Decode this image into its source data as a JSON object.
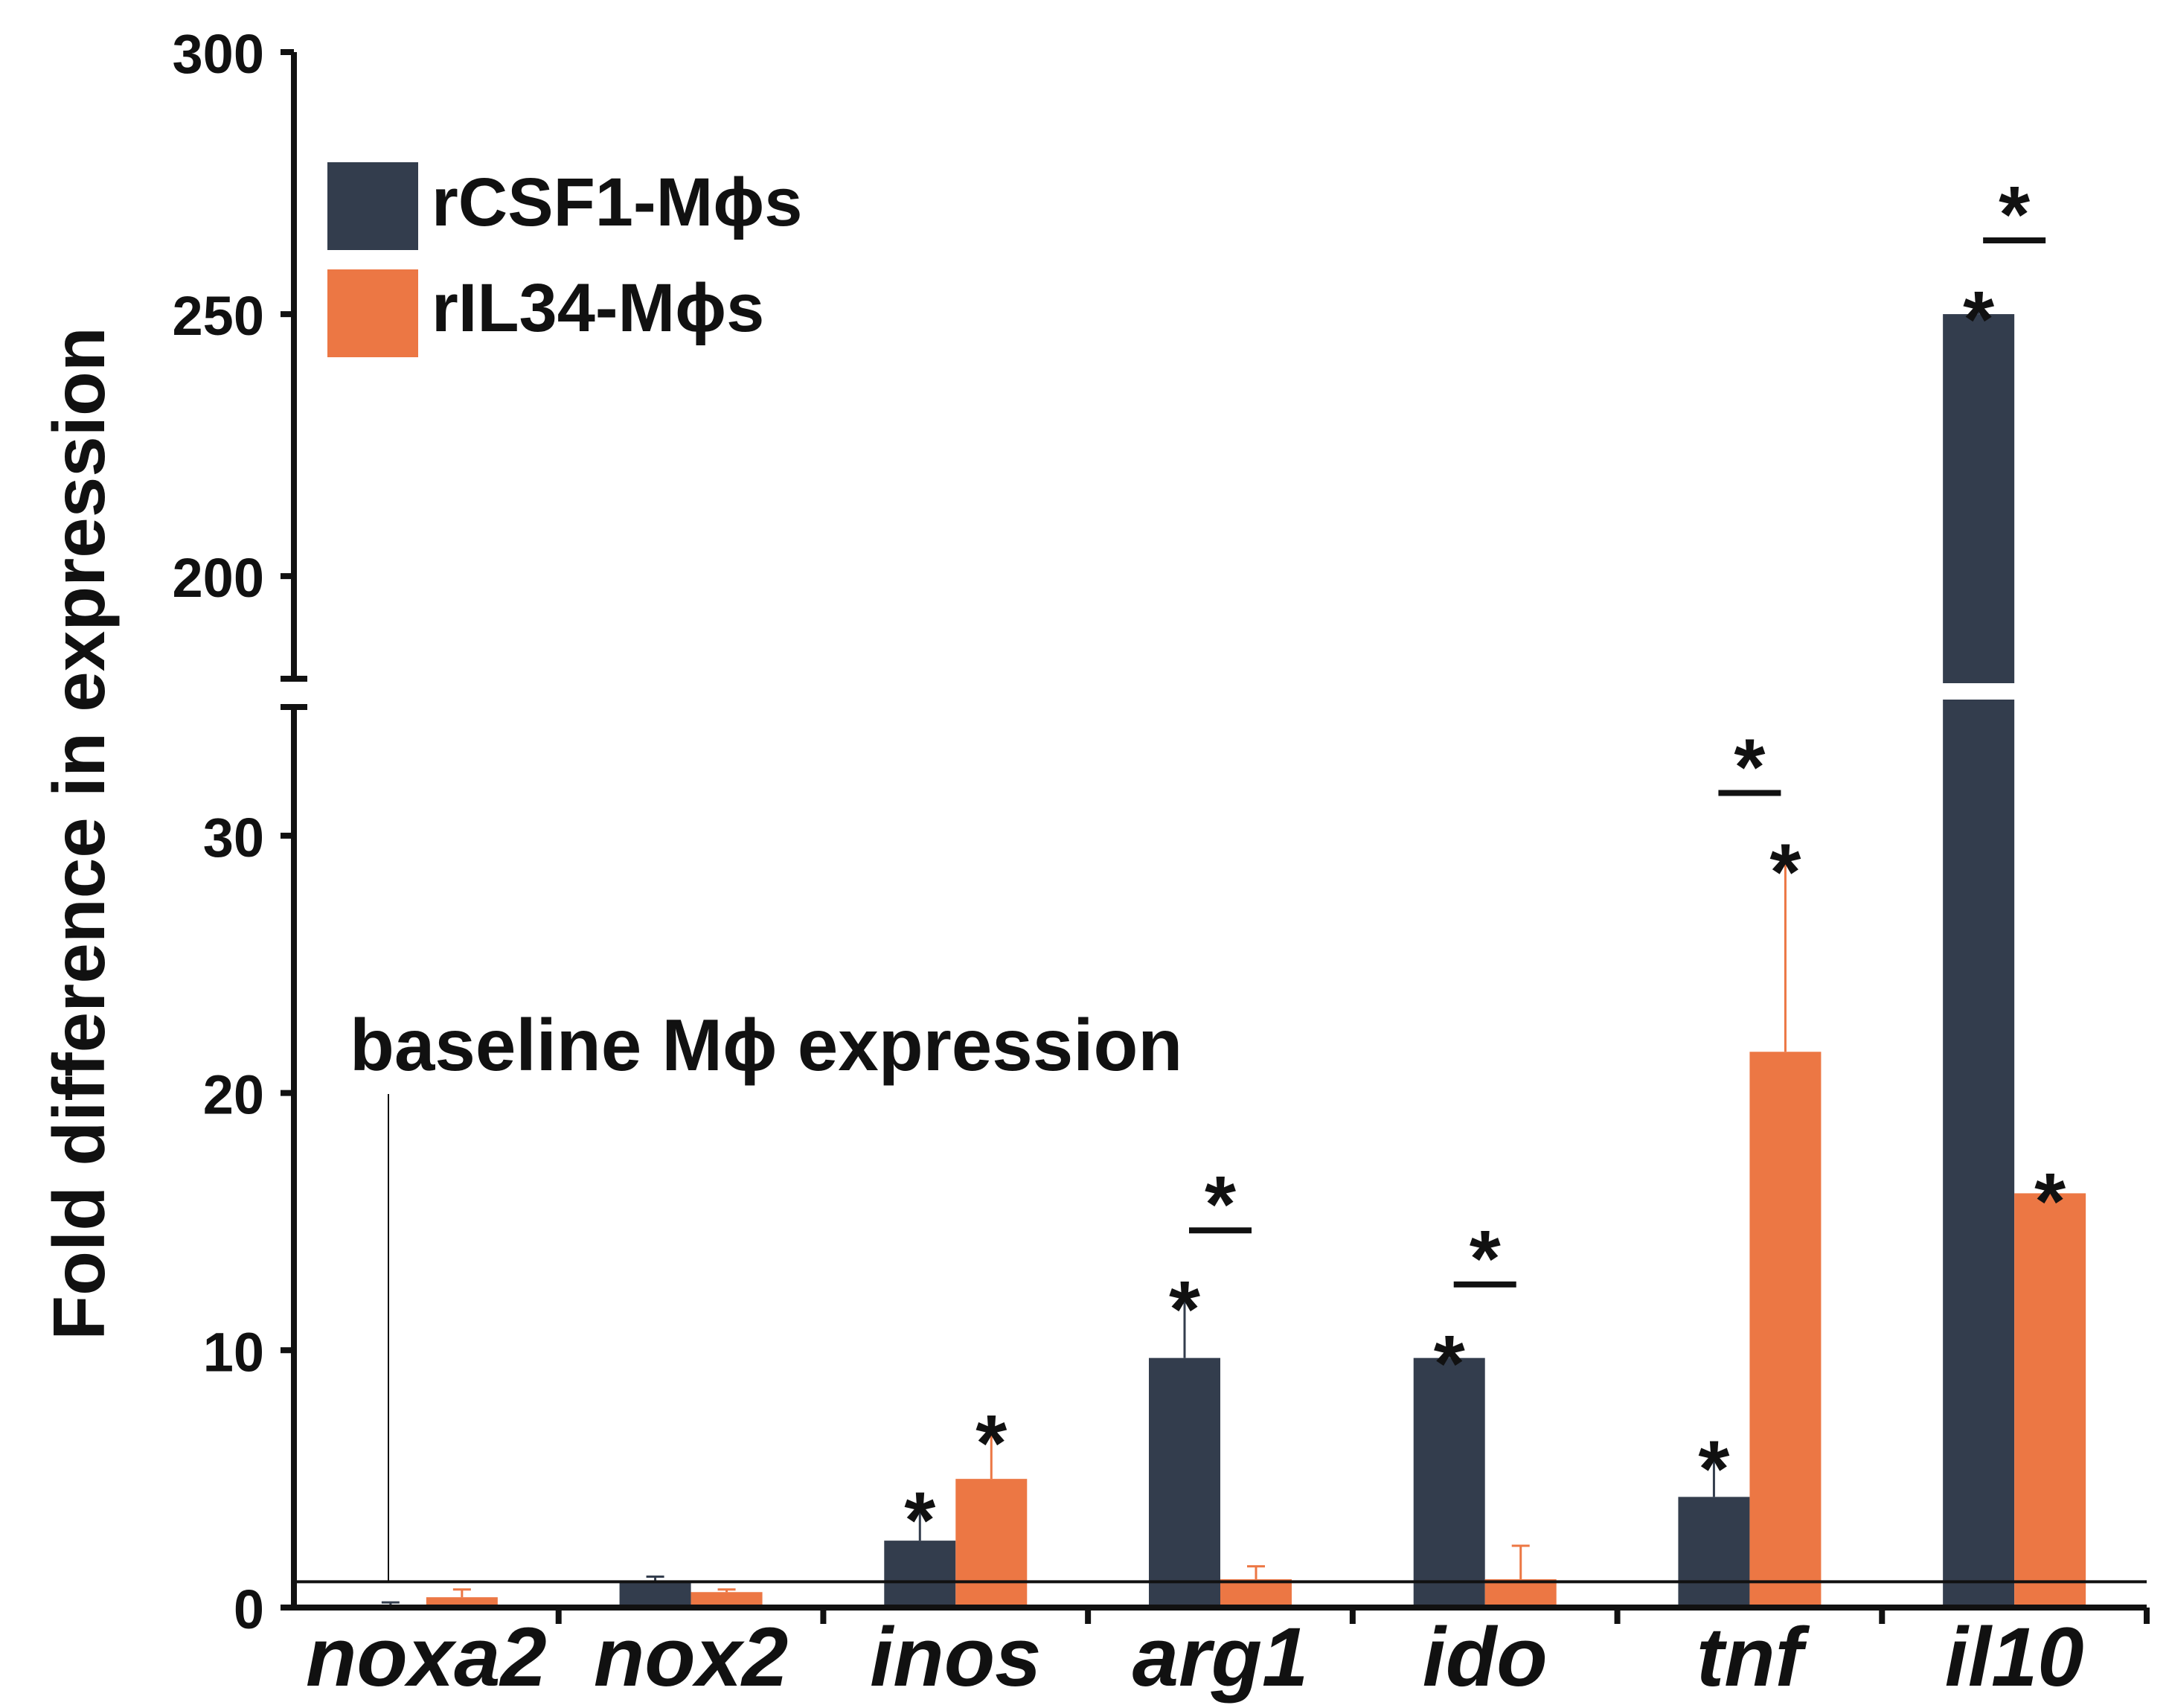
{
  "chart_data": {
    "type": "bar",
    "ylabel": "Fold difference in expression",
    "ylim_lower": [
      0,
      35
    ],
    "ylim_upper": [
      180,
      300
    ],
    "yticks_lower": [
      0,
      10,
      20,
      30
    ],
    "yticks_upper": [
      200,
      250,
      300
    ],
    "ytick_labels_lower": [
      "0",
      "10",
      "20",
      "30"
    ],
    "ytick_labels_upper": [
      "200",
      "250",
      "300"
    ],
    "baseline": {
      "value": 1,
      "label": "baseline Mϕ expression"
    },
    "categories": [
      "noxa2",
      "nox2",
      "inos",
      "arg1",
      "ido",
      "tnf",
      "il10"
    ],
    "series": [
      {
        "name": "rCSF1-Mϕs",
        "color": "#333d4d",
        "values": [
          0.1,
          1.0,
          2.6,
          9.7,
          9.7,
          4.3,
          250
        ],
        "errors": [
          0.1,
          0.2,
          1.4,
          2.5,
          0.4,
          1.7,
          2
        ],
        "sig": [
          false,
          false,
          true,
          true,
          true,
          true,
          true
        ]
      },
      {
        "name": "rIL34-Mϕs",
        "color": "#ec7744",
        "values": [
          0.4,
          0.6,
          5.0,
          1.1,
          1.1,
          21.6,
          16.1
        ],
        "errors": [
          0.3,
          0.1,
          2.0,
          0.5,
          1.3,
          7.6,
          0.3
        ],
        "sig": [
          false,
          false,
          true,
          false,
          false,
          true,
          true
        ]
      }
    ],
    "pair_significance": [
      false,
      false,
      false,
      true,
      true,
      true,
      true
    ],
    "significance_marker": "*",
    "legend_position": "top-left"
  }
}
